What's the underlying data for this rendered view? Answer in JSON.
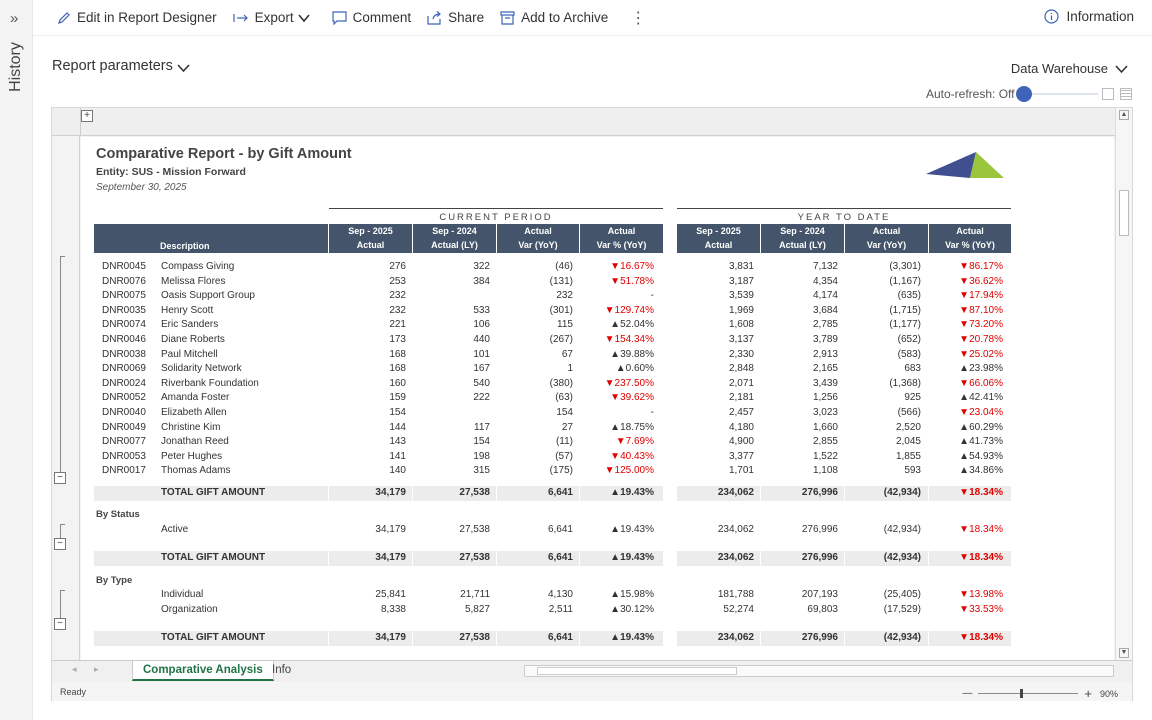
{
  "history": {
    "label": "History",
    "chevron": "»"
  },
  "toolbar": {
    "edit": "Edit in Report Designer",
    "export": "Export",
    "comment": "Comment",
    "share": "Share",
    "archive": "Add to Archive",
    "more": "⋮",
    "information": "Information"
  },
  "params": {
    "label": "Report parameters",
    "source": "Data Warehouse",
    "autorefresh": "Auto-refresh: Off"
  },
  "report": {
    "title": "Comparative Report - by Gift Amount",
    "entity": "Entity: SUS - Mission Forward",
    "date": "September 30, 2025",
    "group_current": "CURRENT PERIOD",
    "group_ytd": "YEAR TO DATE",
    "headers": {
      "description": "Description",
      "c1a": "Sep - 2025",
      "c1b": "Actual",
      "c2a": "Sep - 2024",
      "c2b": "Actual (LY)",
      "c3a": "Actual",
      "c3b": "Var (YoY)",
      "c4a": "Actual",
      "c4b": "Var % (YoY)",
      "y1a": "Sep - 2025",
      "y1b": "Actual",
      "y2a": "Sep - 2024",
      "y2b": "Actual (LY)",
      "y3a": "Actual",
      "y3b": "Var (YoY)",
      "y4a": "Actual",
      "y4b": "Var % (YoY)"
    },
    "rows": [
      {
        "id": "DNR0045",
        "name": "Compass Giving",
        "cur": "276",
        "ly": "322",
        "var": "(46)",
        "pct": "▼16.67%",
        "pdn": true,
        "ycur": "3,831",
        "yly": "7,132",
        "yvar": "(3,301)",
        "ypct": "▼86.17%",
        "ydn": true
      },
      {
        "id": "DNR0076",
        "name": "Melissa Flores",
        "cur": "253",
        "ly": "384",
        "var": "(131)",
        "pct": "▼51.78%",
        "pdn": true,
        "ycur": "3,187",
        "yly": "4,354",
        "yvar": "(1,167)",
        "ypct": "▼36.62%",
        "ydn": true
      },
      {
        "id": "DNR0075",
        "name": "Oasis Support Group",
        "cur": "232",
        "ly": "",
        "var": "232",
        "pct": "-",
        "pdn": false,
        "ycur": "3,539",
        "yly": "4,174",
        "yvar": "(635)",
        "ypct": "▼17.94%",
        "ydn": true
      },
      {
        "id": "DNR0035",
        "name": "Henry Scott",
        "cur": "232",
        "ly": "533",
        "var": "(301)",
        "pct": "▼129.74%",
        "pdn": true,
        "ycur": "1,969",
        "yly": "3,684",
        "yvar": "(1,715)",
        "ypct": "▼87.10%",
        "ydn": true
      },
      {
        "id": "DNR0074",
        "name": "Eric Sanders",
        "cur": "221",
        "ly": "106",
        "var": "115",
        "pct": "▲52.04%",
        "pdn": false,
        "ycur": "1,608",
        "yly": "2,785",
        "yvar": "(1,177)",
        "ypct": "▼73.20%",
        "ydn": true
      },
      {
        "id": "DNR0046",
        "name": "Diane Roberts",
        "cur": "173",
        "ly": "440",
        "var": "(267)",
        "pct": "▼154.34%",
        "pdn": true,
        "ycur": "3,137",
        "yly": "3,789",
        "yvar": "(652)",
        "ypct": "▼20.78%",
        "ydn": true
      },
      {
        "id": "DNR0038",
        "name": "Paul Mitchell",
        "cur": "168",
        "ly": "101",
        "var": "67",
        "pct": "▲39.88%",
        "pdn": false,
        "ycur": "2,330",
        "yly": "2,913",
        "yvar": "(583)",
        "ypct": "▼25.02%",
        "ydn": true
      },
      {
        "id": "DNR0069",
        "name": "Solidarity Network",
        "cur": "168",
        "ly": "167",
        "var": "1",
        "pct": "▲0.60%",
        "pdn": false,
        "ycur": "2,848",
        "yly": "2,165",
        "yvar": "683",
        "ypct": "▲23.98%",
        "ydn": false
      },
      {
        "id": "DNR0024",
        "name": "Riverbank Foundation",
        "cur": "160",
        "ly": "540",
        "var": "(380)",
        "pct": "▼237.50%",
        "pdn": true,
        "ycur": "2,071",
        "yly": "3,439",
        "yvar": "(1,368)",
        "ypct": "▼66.06%",
        "ydn": true
      },
      {
        "id": "DNR0052",
        "name": "Amanda Foster",
        "cur": "159",
        "ly": "222",
        "var": "(63)",
        "pct": "▼39.62%",
        "pdn": true,
        "ycur": "2,181",
        "yly": "1,256",
        "yvar": "925",
        "ypct": "▲42.41%",
        "ydn": false
      },
      {
        "id": "DNR0040",
        "name": "Elizabeth Allen",
        "cur": "154",
        "ly": "",
        "var": "154",
        "pct": "-",
        "pdn": false,
        "ycur": "2,457",
        "yly": "3,023",
        "yvar": "(566)",
        "ypct": "▼23.04%",
        "ydn": true
      },
      {
        "id": "DNR0049",
        "name": "Christine Kim",
        "cur": "144",
        "ly": "117",
        "var": "27",
        "pct": "▲18.75%",
        "pdn": false,
        "ycur": "4,180",
        "yly": "1,660",
        "yvar": "2,520",
        "ypct": "▲60.29%",
        "ydn": false
      },
      {
        "id": "DNR0077",
        "name": "Jonathan Reed",
        "cur": "143",
        "ly": "154",
        "var": "(11)",
        "pct": "▼7.69%",
        "pdn": true,
        "ycur": "4,900",
        "yly": "2,855",
        "yvar": "2,045",
        "ypct": "▲41.73%",
        "ydn": false
      },
      {
        "id": "DNR0053",
        "name": "Peter Hughes",
        "cur": "141",
        "ly": "198",
        "var": "(57)",
        "pct": "▼40.43%",
        "pdn": true,
        "ycur": "3,377",
        "yly": "1,522",
        "yvar": "1,855",
        "ypct": "▲54.93%",
        "ydn": false
      },
      {
        "id": "DNR0017",
        "name": "Thomas Adams",
        "cur": "140",
        "ly": "315",
        "var": "(175)",
        "pct": "▼125.00%",
        "pdn": true,
        "ycur": "1,701",
        "yly": "1,108",
        "yvar": "593",
        "ypct": "▲34.86%",
        "ydn": false
      }
    ],
    "total": {
      "label": "TOTAL GIFT AMOUNT",
      "cur": "34,179",
      "ly": "27,538",
      "var": "6,641",
      "pct": "▲19.43%",
      "ycur": "234,062",
      "yly": "276,996",
      "yvar": "(42,934)",
      "ypct": "▼18.34%"
    },
    "by_status": {
      "label": "By Status",
      "rows": [
        {
          "name": "Active",
          "cur": "34,179",
          "ly": "27,538",
          "var": "6,641",
          "pct": "▲19.43%",
          "ycur": "234,062",
          "yly": "276,996",
          "yvar": "(42,934)",
          "ypct": "▼18.34%"
        }
      ]
    },
    "by_type": {
      "label": "By Type",
      "rows": [
        {
          "name": "Individual",
          "cur": "25,841",
          "ly": "21,711",
          "var": "4,130",
          "pct": "▲15.98%",
          "ycur": "181,788",
          "yly": "207,193",
          "yvar": "(25,405)",
          "ypct": "▼13.98%"
        },
        {
          "name": "Organization",
          "cur": "8,338",
          "ly": "5,827",
          "var": "2,511",
          "pct": "▲30.12%",
          "ycur": "52,274",
          "yly": "69,803",
          "yvar": "(17,529)",
          "ypct": "▼33.53%"
        }
      ]
    }
  },
  "tabs": {
    "active": "Comparative Analysis",
    "other": "Info"
  },
  "statusbar": {
    "ready": "Ready",
    "zoom": "90%",
    "minus": "—",
    "plus": "+"
  },
  "colors": {
    "header": "#44546a",
    "accent": "#217346",
    "negative": "#e00000"
  }
}
